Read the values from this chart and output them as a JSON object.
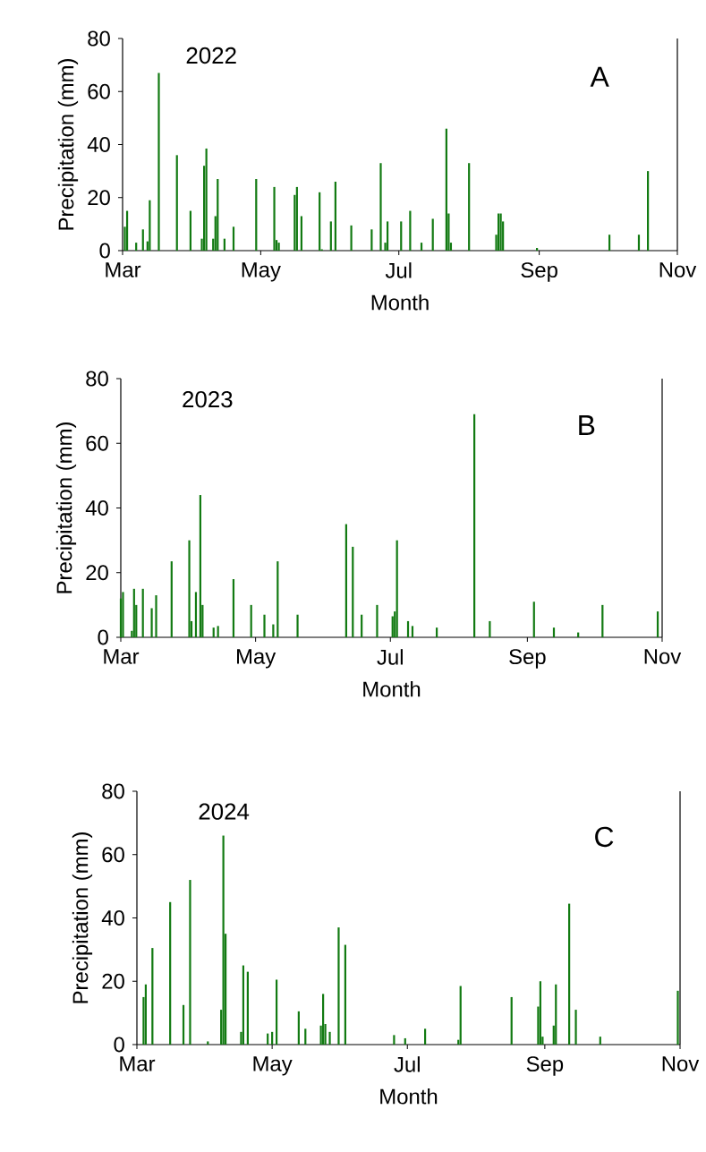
{
  "chart_data": [
    {
      "type": "bar",
      "annotations": [
        "2022",
        "A"
      ],
      "xlabel": "Month",
      "ylabel": "Precipitation (mm)",
      "color": "#127a12",
      "xlim": [
        "2022-03-01",
        "2022-11-01"
      ],
      "xticks": [
        {
          "value": "2022-03-01",
          "label": "Mar"
        },
        {
          "value": "2022-05-01",
          "label": "May"
        },
        {
          "value": "2022-07-01",
          "label": "Jul"
        },
        {
          "value": "2022-09-01",
          "label": "Sep"
        },
        {
          "value": "2022-11-01",
          "label": "Nov"
        }
      ],
      "ylim": [
        0,
        80
      ],
      "yticks": [
        0,
        20,
        40,
        60,
        80
      ],
      "x": [
        "2022-03-02",
        "2022-03-03",
        "2022-03-07",
        "2022-03-10",
        "2022-03-12",
        "2022-03-13",
        "2022-03-17",
        "2022-03-25",
        "2022-03-31",
        "2022-04-05",
        "2022-04-06",
        "2022-04-07",
        "2022-04-10",
        "2022-04-11",
        "2022-04-12",
        "2022-04-15",
        "2022-04-19",
        "2022-04-29",
        "2022-05-07",
        "2022-05-08",
        "2022-05-09",
        "2022-05-16",
        "2022-05-17",
        "2022-05-19",
        "2022-05-27",
        "2022-05-28",
        "2022-06-01",
        "2022-06-03",
        "2022-06-10",
        "2022-06-19",
        "2022-06-23",
        "2022-06-25",
        "2022-06-26",
        "2022-07-02",
        "2022-07-06",
        "2022-07-11",
        "2022-07-16",
        "2022-07-22",
        "2022-07-23",
        "2022-07-24",
        "2022-08-01",
        "2022-08-13",
        "2022-08-14",
        "2022-08-15",
        "2022-08-16",
        "2022-08-31",
        "2022-10-02",
        "2022-10-15",
        "2022-10-19"
      ],
      "values": [
        9,
        15,
        3,
        8,
        3.5,
        19,
        67,
        36,
        15,
        4.5,
        32,
        38.5,
        4.5,
        13,
        27,
        4.5,
        9,
        27,
        24,
        4,
        3,
        21,
        24,
        13,
        22,
        0.5,
        11,
        26,
        9.5,
        8,
        33,
        3,
        11,
        11,
        15,
        3,
        12,
        46,
        14,
        3,
        33,
        6,
        14,
        14,
        11,
        1,
        6,
        6,
        30
      ]
    },
    {
      "type": "bar",
      "annotations": [
        "2023",
        "B"
      ],
      "xlabel": "Month",
      "ylabel": "Precipitation (mm)",
      "color": "#127a12",
      "xlim": [
        "2023-03-01",
        "2023-11-01"
      ],
      "xticks": [
        {
          "value": "2023-03-01",
          "label": "Mar"
        },
        {
          "value": "2023-05-01",
          "label": "May"
        },
        {
          "value": "2023-07-01",
          "label": "Jul"
        },
        {
          "value": "2023-09-01",
          "label": "Sep"
        },
        {
          "value": "2023-11-01",
          "label": "Nov"
        }
      ],
      "ylim": [
        0,
        80
      ],
      "yticks": [
        0,
        20,
        40,
        60,
        80
      ],
      "x": [
        "2023-03-01",
        "2023-03-02",
        "2023-03-06",
        "2023-03-07",
        "2023-03-08",
        "2023-03-11",
        "2023-03-15",
        "2023-03-17",
        "2023-03-24",
        "2023-04-01",
        "2023-04-02",
        "2023-04-04",
        "2023-04-06",
        "2023-04-07",
        "2023-04-12",
        "2023-04-14",
        "2023-04-21",
        "2023-04-29",
        "2023-05-05",
        "2023-05-09",
        "2023-05-11",
        "2023-05-20",
        "2023-06-11",
        "2023-06-14",
        "2023-06-18",
        "2023-06-25",
        "2023-07-02",
        "2023-07-03",
        "2023-07-04",
        "2023-07-09",
        "2023-07-11",
        "2023-07-22",
        "2023-08-08",
        "2023-08-15",
        "2023-09-04",
        "2023-09-13",
        "2023-09-24",
        "2023-10-05",
        "2023-10-30"
      ],
      "values": [
        12,
        14,
        2,
        15,
        10,
        15,
        9,
        13,
        23.5,
        30,
        5,
        14,
        44,
        10,
        3,
        3.5,
        18,
        10,
        7,
        4,
        23.5,
        7,
        35,
        28,
        7,
        10,
        6.5,
        8,
        30,
        5,
        3.5,
        3,
        69,
        5,
        11,
        3,
        1.5,
        10,
        8
      ]
    },
    {
      "type": "bar",
      "annotations": [
        "2024",
        "C"
      ],
      "xlabel": "Month",
      "ylabel": "Precipitation (mm)",
      "color": "#127a12",
      "xlim": [
        "2024-03-01",
        "2024-11-01"
      ],
      "xticks": [
        {
          "value": "2024-03-01",
          "label": "Mar"
        },
        {
          "value": "2024-05-01",
          "label": "May"
        },
        {
          "value": "2024-07-01",
          "label": "Jul"
        },
        {
          "value": "2024-09-01",
          "label": "Sep"
        },
        {
          "value": "2024-11-01",
          "label": "Nov"
        }
      ],
      "ylim": [
        0,
        80
      ],
      "yticks": [
        0,
        20,
        40,
        60,
        80
      ],
      "x": [
        "2024-03-04",
        "2024-03-05",
        "2024-03-08",
        "2024-03-16",
        "2024-03-22",
        "2024-03-25",
        "2024-04-02",
        "2024-04-08",
        "2024-04-09",
        "2024-04-10",
        "2024-04-17",
        "2024-04-18",
        "2024-04-20",
        "2024-04-29",
        "2024-05-01",
        "2024-05-03",
        "2024-05-13",
        "2024-05-16",
        "2024-05-23",
        "2024-05-24",
        "2024-05-25",
        "2024-05-27",
        "2024-05-31",
        "2024-06-03",
        "2024-06-25",
        "2024-06-30",
        "2024-07-09",
        "2024-07-24",
        "2024-07-25",
        "2024-08-17",
        "2024-08-29",
        "2024-08-30",
        "2024-08-31",
        "2024-09-05",
        "2024-09-06",
        "2024-09-12",
        "2024-09-15",
        "2024-09-26",
        "2024-10-31"
      ],
      "values": [
        15,
        19,
        30.5,
        45,
        12.5,
        52,
        1,
        11,
        66,
        35,
        4,
        25,
        23,
        3.5,
        4,
        20.5,
        10.5,
        5,
        6,
        16,
        6.5,
        4,
        37,
        31.5,
        3,
        2,
        5,
        1.5,
        18.5,
        15,
        12,
        20,
        2.5,
        6,
        19,
        44.5,
        11,
        2.5,
        17
      ]
    }
  ]
}
